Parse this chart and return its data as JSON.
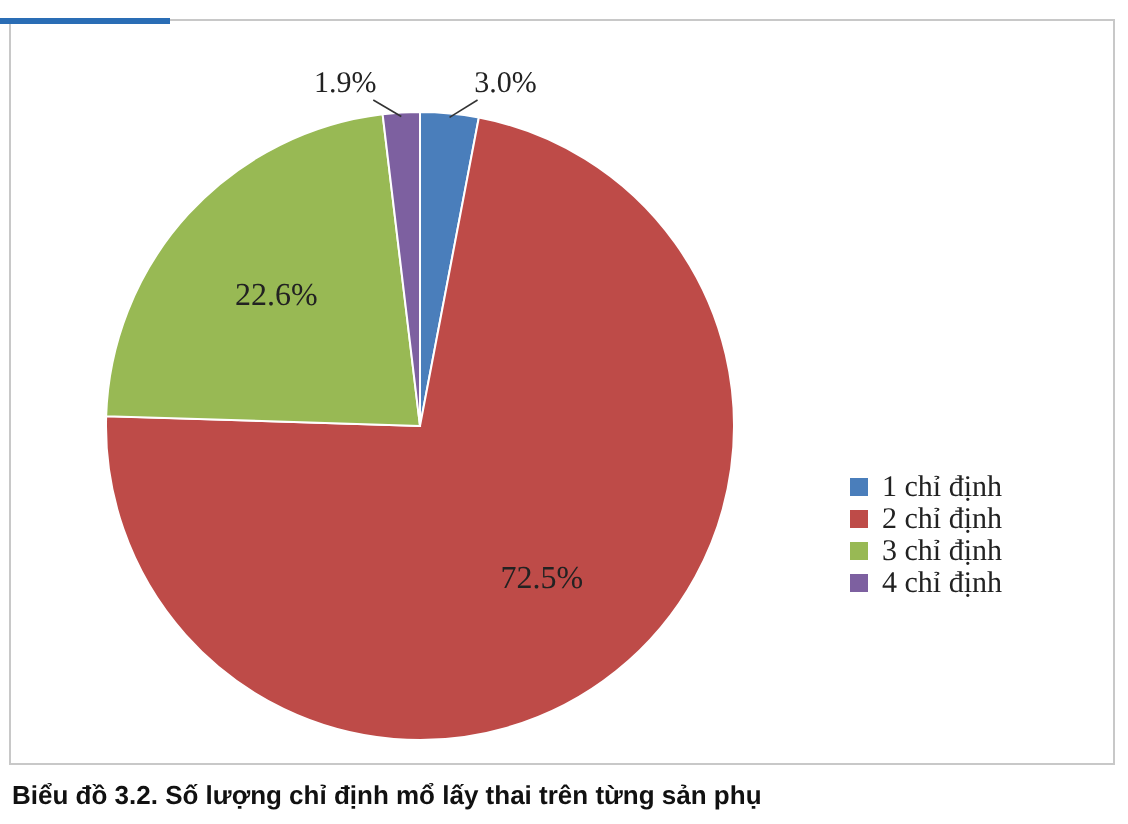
{
  "chart_data": {
    "type": "pie",
    "categories": [
      "1 chỉ định",
      "2 chỉ định",
      "3 chỉ định",
      "4 chỉ định"
    ],
    "values": [
      3.0,
      72.5,
      22.6,
      1.9
    ],
    "colors": [
      "#4a7ebb",
      "#be4b48",
      "#98b954",
      "#7d60a0"
    ],
    "value_labels": [
      "3.0%",
      "72.5%",
      "22.6%",
      "1.9%"
    ],
    "legend": "right",
    "annotations": [
      "Biểu đồ 3.2. Số lượng chỉ định mổ lấy thai trên từng sản phụ"
    ]
  }
}
